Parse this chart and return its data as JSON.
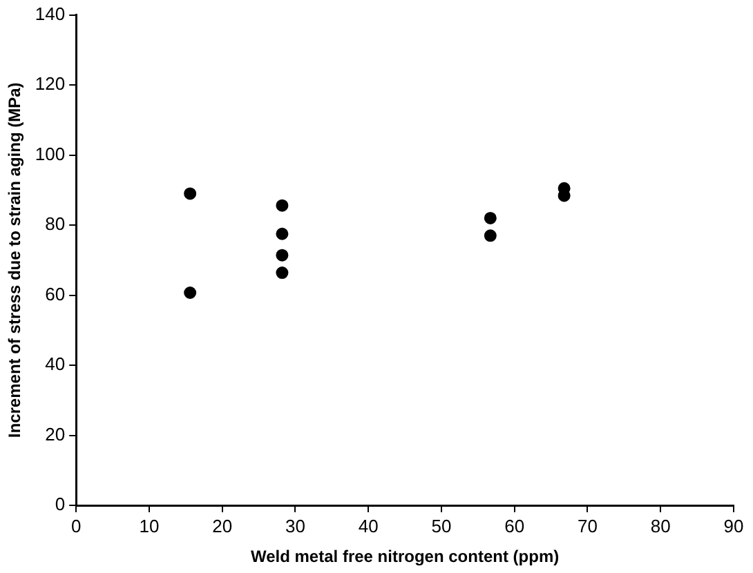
{
  "chart_data": {
    "type": "scatter",
    "xlabel": "Weld metal free nitrogen content (ppm)",
    "ylabel": "Increment of stress due to strain aging (MPa)",
    "x": [
      15.6,
      15.6,
      28.2,
      28.2,
      28.2,
      28.2,
      56.7,
      56.7,
      66.8,
      66.8
    ],
    "values": [
      89,
      60.7,
      85.6,
      77.5,
      71.4,
      66.4,
      82,
      77,
      90.5,
      88.4
    ],
    "color": "#000000",
    "marker": "circle",
    "xlim": [
      0,
      90
    ],
    "xticks": [
      0,
      10,
      20,
      30,
      40,
      50,
      60,
      70,
      80,
      90
    ],
    "ylim": [
      0,
      140
    ],
    "yticks": [
      0,
      20,
      40,
      60,
      80,
      100,
      120,
      140
    ],
    "grid": false,
    "legend": false
  }
}
